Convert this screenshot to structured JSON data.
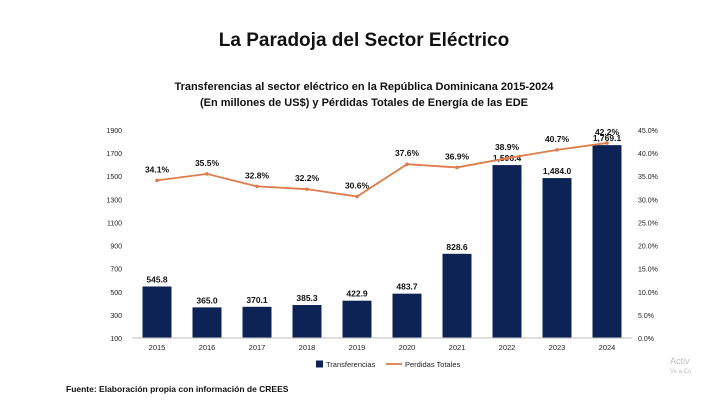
{
  "slide_title": "La Paradoja del Sector Eléctrico",
  "chart_data": {
    "type": "bar+line",
    "title_line1": "Transferencias al sector eléctrico en la República Dominicana 2015-2024",
    "title_line2": "(En millones de US$) y Pérdidas Totales de Energía de las EDE",
    "categories": [
      "2015",
      "2016",
      "2017",
      "2018",
      "2019",
      "2020",
      "2021",
      "2022",
      "2023",
      "2024"
    ],
    "series": [
      {
        "name": "Transferencias",
        "type": "bar",
        "axis": "left",
        "color": "#0d2356",
        "values": [
          545.8,
          365.0,
          370.1,
          385.3,
          422.9,
          483.7,
          828.6,
          1596.4,
          1484.0,
          1769.1
        ],
        "labels": [
          "545.8",
          "365.0",
          "370.1",
          "385.3",
          "422.9",
          "483.7",
          "828.6",
          "1,596.4",
          "1,484.0",
          "1,769.1"
        ]
      },
      {
        "name": "Perdidas Totales",
        "type": "line",
        "axis": "right",
        "color": "#e07b4a",
        "values": [
          34.1,
          35.5,
          32.8,
          32.2,
          30.6,
          37.6,
          36.9,
          38.9,
          40.7,
          42.2
        ],
        "labels": [
          "34.1%",
          "35.5%",
          "32.8%",
          "32.2%",
          "30.6%",
          "37.6%",
          "36.9%",
          "38.9%",
          "40.7%",
          "42.2%"
        ]
      }
    ],
    "left_axis": {
      "ylim": [
        100,
        1900
      ],
      "ticks": [
        100,
        300,
        500,
        700,
        900,
        1100,
        1300,
        1500,
        1700,
        1900
      ],
      "tick_labels": [
        "100",
        "300",
        "500",
        "700",
        "900",
        "1100",
        "1300",
        "1500",
        "1700",
        "1900"
      ]
    },
    "right_axis": {
      "ylim": [
        0,
        45
      ],
      "ticks": [
        0,
        5,
        10,
        15,
        20,
        25,
        30,
        35,
        40,
        45
      ],
      "tick_labels": [
        "0.0%",
        "5.0%",
        "10.0%",
        "15.0%",
        "20.0%",
        "25.0%",
        "30.0%",
        "35.0%",
        "40.0%",
        "45.0%"
      ]
    },
    "legend": [
      "Transferencias",
      "Perdidas Totales"
    ],
    "legend_position": "bottom"
  },
  "source": "Fuente: Elaboración propia con información de CREES",
  "watermark": {
    "line1": "Activ",
    "line2": "Ve a Co"
  }
}
